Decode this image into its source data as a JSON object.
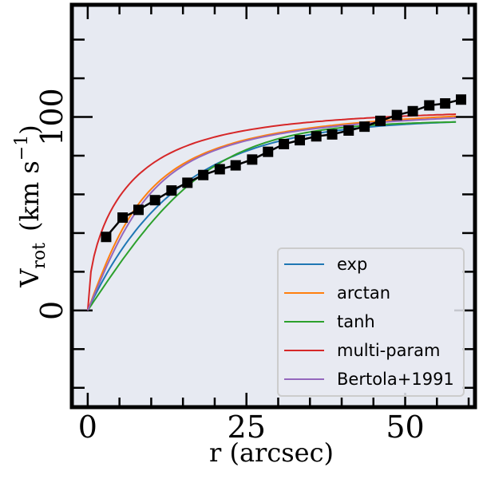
{
  "chart_data": {
    "type": "line",
    "xlabel": "r (arcsec)",
    "ylabel_main": "V",
    "ylabel_sub": "rot",
    "ylabel_units": "(km s",
    "ylabel_exp": "−1",
    "ylabel_close": ")",
    "xlim": [
      -2.5,
      61
    ],
    "ylim": [
      -50,
      158
    ],
    "x_ticks": [
      0,
      25,
      50
    ],
    "y_ticks": [
      0,
      100
    ],
    "x_minor_ticks": [
      0,
      5,
      10,
      15,
      20,
      25,
      30,
      35,
      40,
      45,
      50,
      55,
      60
    ],
    "y_minor_ticks": [
      -40,
      -20,
      0,
      20,
      40,
      60,
      80,
      100,
      120,
      140
    ],
    "grid": false,
    "legend_position": "lower-right",
    "observed": {
      "x": [
        2.9,
        5.5,
        8.0,
        10.6,
        13.2,
        15.7,
        18.2,
        20.8,
        23.3,
        25.9,
        28.4,
        30.9,
        33.4,
        36.0,
        38.5,
        41.1,
        43.6,
        46.1,
        48.7,
        51.2,
        53.8,
        56.3,
        58.8
      ],
      "y": [
        38,
        48,
        52,
        57,
        62,
        66,
        70,
        73,
        75,
        78,
        82,
        86,
        88,
        90,
        91,
        93,
        95,
        98,
        101,
        103,
        106,
        107,
        109
      ]
    },
    "series": [
      {
        "name": "exp",
        "color": "#1f77b4",
        "model": "exp",
        "vmax": 99,
        "rt": 14
      },
      {
        "name": "arctan",
        "color": "#ff7f0e",
        "model": "arctan",
        "vmax": 110,
        "rt": 8
      },
      {
        "name": "tanh",
        "color": "#2ca02c",
        "model": "tanh",
        "vmax": 98,
        "rt": 20
      },
      {
        "name": "multi-param",
        "color": "#d62728",
        "model": "multi",
        "vmax": 118,
        "rt": 14
      },
      {
        "name": "Bertola+1991",
        "color": "#9467bd",
        "model": "bertola",
        "vmax": 104,
        "rt": 11
      }
    ]
  }
}
